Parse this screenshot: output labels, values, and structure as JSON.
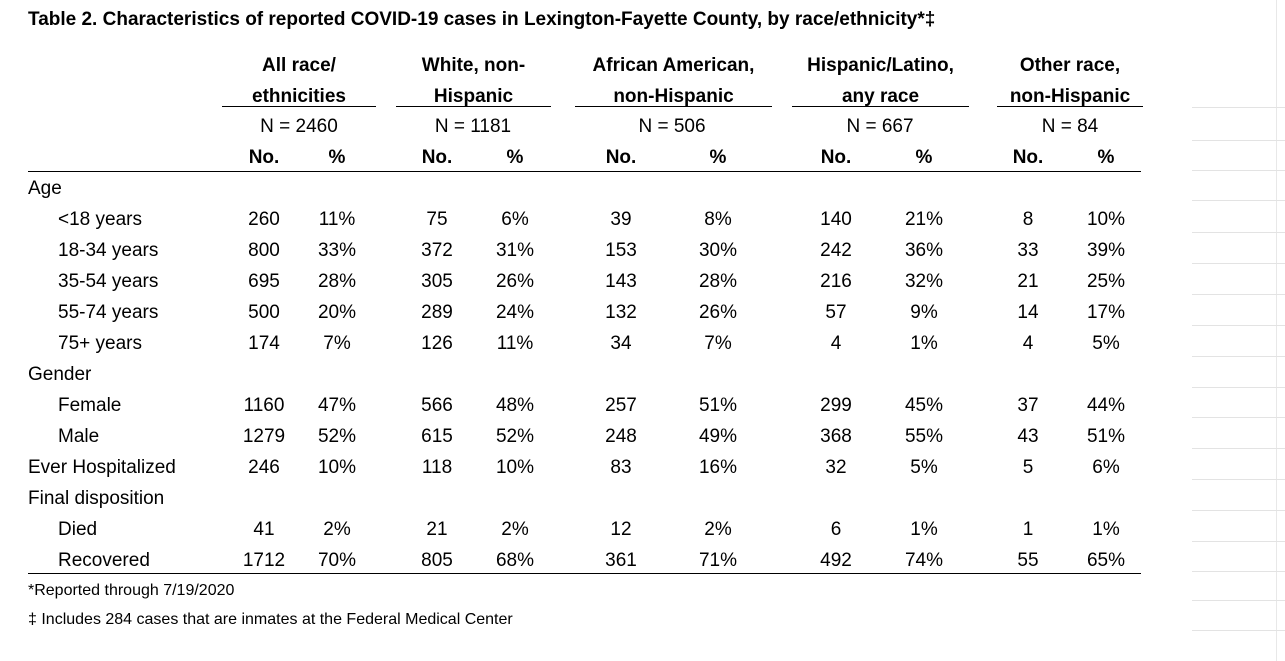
{
  "title": "Table 2. Characteristics of reported COVID-19 cases in Lexington-Fayette County, by race/ethnicity*‡",
  "groups": [
    {
      "line1": "All race/",
      "line2": "ethnicities",
      "n": "N = 2460"
    },
    {
      "line1": "White, non-",
      "line2": "Hispanic",
      "n": "N = 1181"
    },
    {
      "line1": "African American,",
      "line2": "non-Hispanic",
      "n": "N = 506"
    },
    {
      "line1": "Hispanic/Latino,",
      "line2": "any race",
      "n": "N = 667"
    },
    {
      "line1": "Other race,",
      "line2": "non-Hispanic",
      "n": "N = 84"
    }
  ],
  "sub_no": "No.",
  "sub_pct": "%",
  "rows": [
    {
      "label": "Age",
      "section": true,
      "cells": []
    },
    {
      "label": "<18 years",
      "section": false,
      "cells": [
        "260",
        "11%",
        "75",
        "6%",
        "39",
        "8%",
        "140",
        "21%",
        "8",
        "10%"
      ]
    },
    {
      "label": "18-34 years",
      "section": false,
      "cells": [
        "800",
        "33%",
        "372",
        "31%",
        "153",
        "30%",
        "242",
        "36%",
        "33",
        "39%"
      ]
    },
    {
      "label": "35-54 years",
      "section": false,
      "cells": [
        "695",
        "28%",
        "305",
        "26%",
        "143",
        "28%",
        "216",
        "32%",
        "21",
        "25%"
      ]
    },
    {
      "label": "55-74 years",
      "section": false,
      "cells": [
        "500",
        "20%",
        "289",
        "24%",
        "132",
        "26%",
        "57",
        "9%",
        "14",
        "17%"
      ]
    },
    {
      "label": "75+ years",
      "section": false,
      "cells": [
        "174",
        "7%",
        "126",
        "11%",
        "34",
        "7%",
        "4",
        "1%",
        "4",
        "5%"
      ]
    },
    {
      "label": "Gender",
      "section": true,
      "cells": []
    },
    {
      "label": "Female",
      "section": false,
      "cells": [
        "1160",
        "47%",
        "566",
        "48%",
        "257",
        "51%",
        "299",
        "45%",
        "37",
        "44%"
      ]
    },
    {
      "label": "Male",
      "section": false,
      "cells": [
        "1279",
        "52%",
        "615",
        "52%",
        "248",
        "49%",
        "368",
        "55%",
        "43",
        "51%"
      ]
    },
    {
      "label": "Ever Hospitalized",
      "section": true,
      "cells": [
        "246",
        "10%",
        "118",
        "10%",
        "83",
        "16%",
        "32",
        "5%",
        "5",
        "6%"
      ]
    },
    {
      "label": "Final disposition",
      "section": true,
      "cells": []
    },
    {
      "label": "Died",
      "section": false,
      "cells": [
        "41",
        "2%",
        "21",
        "2%",
        "12",
        "2%",
        "6",
        "1%",
        "1",
        "1%"
      ]
    },
    {
      "label": "Recovered",
      "section": false,
      "cells": [
        "1712",
        "70%",
        "805",
        "68%",
        "361",
        "71%",
        "492",
        "74%",
        "55",
        "65%"
      ]
    }
  ],
  "footnotes": [
    "*Reported through 7/19/2020",
    "‡ Includes 284 cases that are inmates at the Federal Medical Center"
  ]
}
